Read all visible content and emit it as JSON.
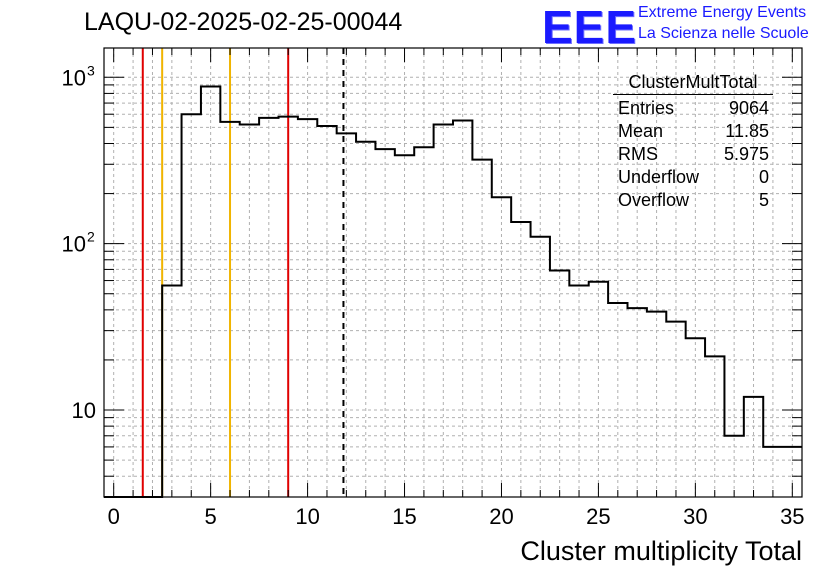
{
  "header": {
    "title": "LAQU-02-2025-02-25-00044",
    "logo_text": "EEE",
    "logo_line1": "Extreme Energy Events",
    "logo_line2": "La Scienza nelle Scuole"
  },
  "stats_box": {
    "name": "ClusterMultTotal",
    "rows": [
      {
        "label": "Entries",
        "value": "9064"
      },
      {
        "label": "Mean",
        "value": "11.85"
      },
      {
        "label": "RMS",
        "value": "5.975"
      },
      {
        "label": "Underflow",
        "value": "0"
      },
      {
        "label": "Overflow",
        "value": "5"
      }
    ]
  },
  "chart_data": {
    "type": "histogram",
    "title": "LAQU-02-2025-02-25-00044",
    "xlabel": "Cluster multiplicity Total",
    "ylabel": "",
    "xlim": [
      -0.5,
      35.5
    ],
    "ylim": [
      3,
      1500
    ],
    "y_scale": "log",
    "grid": true,
    "x_ticks": [
      0,
      5,
      10,
      15,
      20,
      25,
      30,
      35
    ],
    "x_tick_labels": [
      "0",
      "5",
      "10",
      "15",
      "20",
      "25",
      "30",
      "35"
    ],
    "y_ticks": [
      10,
      100,
      1000
    ],
    "y_tick_labels": [
      "10",
      "10",
      "10"
    ],
    "y_tick_exponents": [
      "",
      "2",
      "3"
    ],
    "bin_edges": [
      -0.5,
      0.5,
      1.5,
      2.5,
      3.5,
      4.5,
      5.5,
      6.5,
      7.5,
      8.5,
      9.5,
      10.5,
      11.5,
      12.5,
      13.5,
      14.5,
      15.5,
      16.5,
      17.5,
      18.5,
      19.5,
      20.5,
      21.5,
      22.5,
      23.5,
      24.5,
      25.5,
      26.5,
      27.5,
      28.5,
      29.5,
      30.5,
      31.5,
      32.5,
      33.5,
      34.5,
      35.5
    ],
    "values": [
      0,
      0,
      0,
      56,
      600,
      880,
      540,
      520,
      570,
      580,
      560,
      510,
      460,
      410,
      370,
      340,
      380,
      520,
      550,
      320,
      190,
      135,
      110,
      69,
      56,
      59,
      44,
      41,
      39,
      34,
      27,
      21,
      7,
      12,
      6,
      6
    ],
    "vertical_lines": [
      {
        "x": 1.5,
        "color": "#e00000",
        "style": "solid"
      },
      {
        "x": 2.5,
        "color": "#f0b400",
        "style": "solid"
      },
      {
        "x": 6.0,
        "color": "#f0b400",
        "style": "solid"
      },
      {
        "x": 9.0,
        "color": "#e00000",
        "style": "solid"
      },
      {
        "x": 11.85,
        "color": "#000000",
        "style": "dashed"
      }
    ],
    "colors": {
      "histogram": "#000000",
      "grid": "#b0b0b0"
    }
  }
}
